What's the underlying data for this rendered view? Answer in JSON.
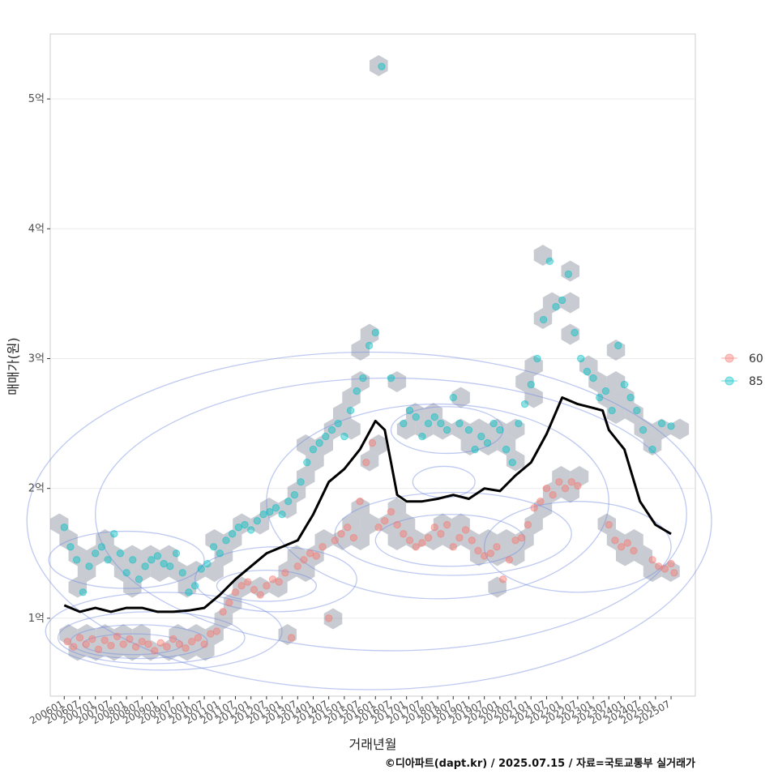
{
  "chart_data": {
    "type": "scatter",
    "xlabel": "거래년월",
    "ylabel": "매매가(원)",
    "caption": "©디아파트(dapt.kr) / 2025.07.15 / 자료=국토교통부 실거래가",
    "ylim": [
      0.4,
      5.5
    ],
    "yticks": [
      {
        "value": 1,
        "label": "1억"
      },
      {
        "value": 2,
        "label": "2억"
      },
      {
        "value": 3,
        "label": "3억"
      },
      {
        "value": 4,
        "label": "4억"
      },
      {
        "value": 5,
        "label": "5억"
      }
    ],
    "xlim": [
      2005.55,
      2026.28
    ],
    "xticks": [
      "200601",
      "200607",
      "200701",
      "200707",
      "200801",
      "200807",
      "200901",
      "200907",
      "201001",
      "201007",
      "201101",
      "201107",
      "201201",
      "201207",
      "201301",
      "201307",
      "201401",
      "201407",
      "201501",
      "201507",
      "201601",
      "201607",
      "201701",
      "201707",
      "201801",
      "201807",
      "201901",
      "201907",
      "202001",
      "202007",
      "202101",
      "202107",
      "202201",
      "202207",
      "202301",
      "202307",
      "202401",
      "202407",
      "202501",
      "202507"
    ],
    "grid": true,
    "legend": {
      "position": "right",
      "entries": [
        {
          "label": "60",
          "color": "#f8766d"
        },
        {
          "label": "85",
          "color": "#00bfc4"
        }
      ]
    },
    "colors": {
      "series_60": "#f8766d",
      "series_85": "#00bfc4",
      "hexbin": "#9aa3ad",
      "contour": "#6f87e0",
      "trend": "#000000"
    },
    "trend_line": {
      "x": [
        2006.0,
        2006.5,
        2007.0,
        2007.5,
        2008.0,
        2008.5,
        2009.0,
        2009.5,
        2010.0,
        2010.5,
        2011.0,
        2011.5,
        2012.0,
        2012.5,
        2013.0,
        2013.5,
        2014.0,
        2014.5,
        2015.0,
        2015.5,
        2016.0,
        2016.3,
        2016.5,
        2016.7,
        2017.0,
        2017.5,
        2018.0,
        2018.5,
        2019.0,
        2019.5,
        2020.0,
        2020.5,
        2021.0,
        2021.5,
        2022.0,
        2022.5,
        2023.0,
        2023.3,
        2023.5,
        2024.0,
        2024.5,
        2025.0,
        2025.5
      ],
      "y": [
        1.1,
        1.05,
        1.08,
        1.05,
        1.08,
        1.08,
        1.05,
        1.05,
        1.06,
        1.08,
        1.18,
        1.3,
        1.4,
        1.5,
        1.55,
        1.6,
        1.8,
        2.05,
        2.15,
        2.3,
        2.52,
        2.45,
        2.2,
        1.95,
        1.9,
        1.9,
        1.92,
        1.95,
        1.92,
        2.0,
        1.98,
        2.1,
        2.2,
        2.42,
        2.7,
        2.65,
        2.62,
        2.6,
        2.45,
        2.3,
        1.9,
        1.72,
        1.65
      ]
    },
    "series": [
      {
        "name": "60",
        "points": [
          [
            2006.1,
            0.82
          ],
          [
            2006.3,
            0.78
          ],
          [
            2006.5,
            0.85
          ],
          [
            2006.7,
            0.8
          ],
          [
            2006.9,
            0.84
          ],
          [
            2007.1,
            0.76
          ],
          [
            2007.3,
            0.83
          ],
          [
            2007.5,
            0.79
          ],
          [
            2007.7,
            0.86
          ],
          [
            2007.9,
            0.8
          ],
          [
            2008.1,
            0.84
          ],
          [
            2008.3,
            0.78
          ],
          [
            2008.5,
            0.82
          ],
          [
            2008.7,
            0.8
          ],
          [
            2008.9,
            0.75
          ],
          [
            2009.1,
            0.81
          ],
          [
            2009.3,
            0.78
          ],
          [
            2009.5,
            0.84
          ],
          [
            2009.7,
            0.8
          ],
          [
            2009.9,
            0.77
          ],
          [
            2010.1,
            0.82
          ],
          [
            2010.3,
            0.85
          ],
          [
            2010.5,
            0.8
          ],
          [
            2010.7,
            0.88
          ],
          [
            2010.9,
            0.9
          ],
          [
            2011.1,
            1.05
          ],
          [
            2011.3,
            1.12
          ],
          [
            2011.5,
            1.2
          ],
          [
            2011.7,
            1.25
          ],
          [
            2011.9,
            1.28
          ],
          [
            2012.1,
            1.22
          ],
          [
            2012.3,
            1.18
          ],
          [
            2012.5,
            1.25
          ],
          [
            2012.7,
            1.3
          ],
          [
            2012.9,
            1.28
          ],
          [
            2013.1,
            1.35
          ],
          [
            2013.3,
            0.85
          ],
          [
            2013.5,
            1.4
          ],
          [
            2013.7,
            1.45
          ],
          [
            2013.9,
            1.5
          ],
          [
            2014.1,
            1.48
          ],
          [
            2014.3,
            1.55
          ],
          [
            2014.5,
            1.0
          ],
          [
            2014.7,
            1.6
          ],
          [
            2014.9,
            1.65
          ],
          [
            2015.1,
            1.7
          ],
          [
            2015.3,
            1.62
          ],
          [
            2015.5,
            1.9
          ],
          [
            2015.7,
            2.2
          ],
          [
            2015.9,
            2.35
          ],
          [
            2016.1,
            1.7
          ],
          [
            2016.3,
            1.75
          ],
          [
            2016.5,
            1.82
          ],
          [
            2016.7,
            1.72
          ],
          [
            2016.9,
            1.65
          ],
          [
            2017.1,
            1.6
          ],
          [
            2017.3,
            1.55
          ],
          [
            2017.5,
            1.58
          ],
          [
            2017.7,
            1.62
          ],
          [
            2017.9,
            1.7
          ],
          [
            2018.1,
            1.65
          ],
          [
            2018.3,
            1.72
          ],
          [
            2018.5,
            1.55
          ],
          [
            2018.7,
            1.62
          ],
          [
            2018.9,
            1.68
          ],
          [
            2019.1,
            1.6
          ],
          [
            2019.3,
            1.52
          ],
          [
            2019.5,
            1.48
          ],
          [
            2019.7,
            1.5
          ],
          [
            2019.9,
            1.55
          ],
          [
            2020.1,
            1.3
          ],
          [
            2020.3,
            1.45
          ],
          [
            2020.5,
            1.6
          ],
          [
            2020.7,
            1.62
          ],
          [
            2020.9,
            1.72
          ],
          [
            2021.1,
            1.85
          ],
          [
            2021.3,
            1.9
          ],
          [
            2021.5,
            2.0
          ],
          [
            2021.7,
            1.95
          ],
          [
            2021.9,
            2.05
          ],
          [
            2022.1,
            2.0
          ],
          [
            2022.3,
            2.05
          ],
          [
            2022.5,
            2.02
          ],
          [
            2023.5,
            1.72
          ],
          [
            2023.7,
            1.6
          ],
          [
            2023.9,
            1.55
          ],
          [
            2024.1,
            1.58
          ],
          [
            2024.3,
            1.52
          ],
          [
            2024.9,
            1.45
          ],
          [
            2025.1,
            1.4
          ],
          [
            2025.3,
            1.38
          ],
          [
            2025.5,
            1.42
          ],
          [
            2025.6,
            1.35
          ]
        ]
      },
      {
        "name": "85",
        "points": [
          [
            2006.0,
            1.7
          ],
          [
            2006.2,
            1.55
          ],
          [
            2006.4,
            1.45
          ],
          [
            2006.6,
            1.2
          ],
          [
            2006.8,
            1.4
          ],
          [
            2007.0,
            1.5
          ],
          [
            2007.2,
            1.55
          ],
          [
            2007.4,
            1.45
          ],
          [
            2007.6,
            1.65
          ],
          [
            2007.8,
            1.5
          ],
          [
            2008.0,
            1.35
          ],
          [
            2008.2,
            1.45
          ],
          [
            2008.4,
            1.3
          ],
          [
            2008.6,
            1.4
          ],
          [
            2008.8,
            1.45
          ],
          [
            2009.0,
            1.48
          ],
          [
            2009.2,
            1.42
          ],
          [
            2009.4,
            1.4
          ],
          [
            2009.6,
            1.5
          ],
          [
            2009.8,
            1.35
          ],
          [
            2010.0,
            1.2
          ],
          [
            2010.2,
            1.25
          ],
          [
            2010.4,
            1.38
          ],
          [
            2010.6,
            1.42
          ],
          [
            2010.8,
            1.55
          ],
          [
            2011.0,
            1.5
          ],
          [
            2011.2,
            1.6
          ],
          [
            2011.4,
            1.65
          ],
          [
            2011.6,
            1.7
          ],
          [
            2011.8,
            1.72
          ],
          [
            2012.0,
            1.68
          ],
          [
            2012.2,
            1.75
          ],
          [
            2012.4,
            1.8
          ],
          [
            2012.6,
            1.82
          ],
          [
            2012.8,
            1.85
          ],
          [
            2013.0,
            1.8
          ],
          [
            2013.2,
            1.9
          ],
          [
            2013.4,
            1.95
          ],
          [
            2013.6,
            2.05
          ],
          [
            2013.8,
            2.2
          ],
          [
            2014.0,
            2.3
          ],
          [
            2014.2,
            2.35
          ],
          [
            2014.4,
            2.4
          ],
          [
            2014.6,
            2.45
          ],
          [
            2014.8,
            2.5
          ],
          [
            2015.0,
            2.4
          ],
          [
            2015.2,
            2.6
          ],
          [
            2015.4,
            2.75
          ],
          [
            2015.6,
            2.85
          ],
          [
            2015.8,
            3.1
          ],
          [
            2016.0,
            3.2
          ],
          [
            2016.2,
            5.25
          ],
          [
            2016.5,
            2.85
          ],
          [
            2016.9,
            2.5
          ],
          [
            2017.1,
            2.6
          ],
          [
            2017.3,
            2.55
          ],
          [
            2017.5,
            2.4
          ],
          [
            2017.7,
            2.5
          ],
          [
            2017.9,
            2.55
          ],
          [
            2018.1,
            2.5
          ],
          [
            2018.3,
            2.45
          ],
          [
            2018.5,
            2.7
          ],
          [
            2018.7,
            2.5
          ],
          [
            2019.0,
            2.45
          ],
          [
            2019.2,
            2.3
          ],
          [
            2019.4,
            2.4
          ],
          [
            2019.6,
            2.35
          ],
          [
            2019.8,
            2.5
          ],
          [
            2020.0,
            2.45
          ],
          [
            2020.2,
            2.3
          ],
          [
            2020.4,
            2.2
          ],
          [
            2020.6,
            2.5
          ],
          [
            2020.8,
            2.65
          ],
          [
            2021.0,
            2.8
          ],
          [
            2021.2,
            3.0
          ],
          [
            2021.4,
            3.3
          ],
          [
            2021.6,
            3.75
          ],
          [
            2021.8,
            3.4
          ],
          [
            2022.0,
            3.45
          ],
          [
            2022.2,
            3.65
          ],
          [
            2022.4,
            3.2
          ],
          [
            2022.6,
            3.0
          ],
          [
            2022.8,
            2.9
          ],
          [
            2023.0,
            2.85
          ],
          [
            2023.2,
            2.7
          ],
          [
            2023.4,
            2.75
          ],
          [
            2023.6,
            2.6
          ],
          [
            2023.8,
            3.1
          ],
          [
            2024.0,
            2.8
          ],
          [
            2024.2,
            2.7
          ],
          [
            2024.4,
            2.6
          ],
          [
            2024.6,
            2.45
          ],
          [
            2024.9,
            2.3
          ],
          [
            2025.2,
            2.5
          ],
          [
            2025.5,
            2.48
          ]
        ]
      }
    ]
  }
}
